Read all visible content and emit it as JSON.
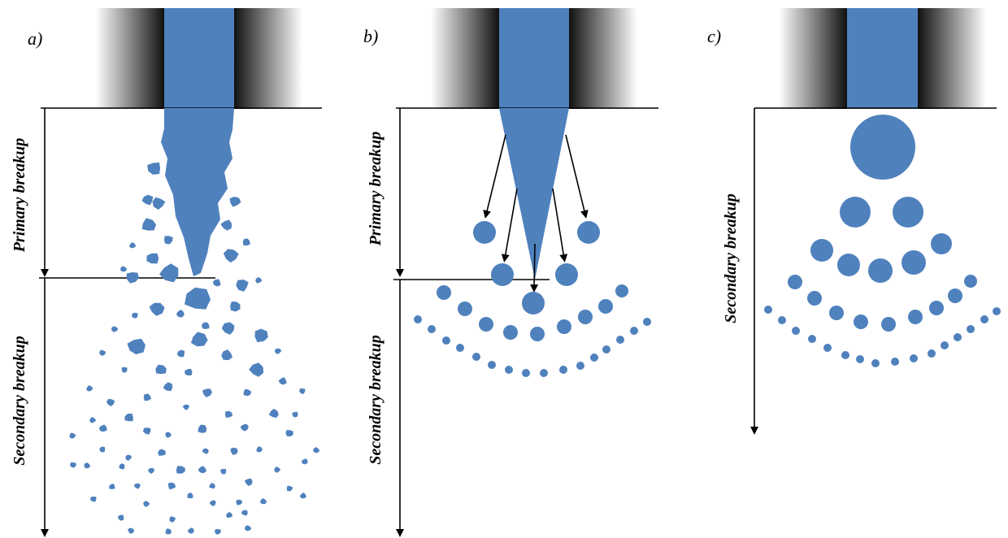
{
  "panels": [
    {
      "id": "a",
      "label": "a)",
      "stages": [
        "Primary breakup",
        "Secondary breakup"
      ]
    },
    {
      "id": "b",
      "label": "b)",
      "stages": [
        "Primary breakup",
        "Secondary breakup"
      ]
    },
    {
      "id": "c",
      "label": "c)",
      "stages": [
        "Secondary breakup"
      ]
    }
  ],
  "colors": {
    "liquid": "#4f81bd",
    "nozzle_wall_dark": "#111111",
    "nozzle_wall_light": "#ffffff",
    "axis_lines": "#000000"
  }
}
